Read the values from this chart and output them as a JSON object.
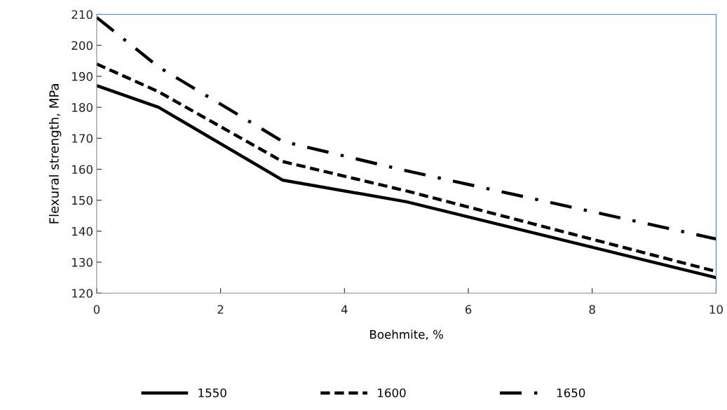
{
  "chart_data": {
    "type": "line",
    "xlabel": "Boehmite, %",
    "ylabel": "Flexural strength, MPa",
    "x": [
      0,
      1,
      3,
      5,
      10
    ],
    "series": [
      {
        "name": "1550",
        "color": "#000000",
        "line_style": "solid",
        "values": [
          187,
          180,
          156.5,
          149.5,
          125
        ]
      },
      {
        "name": "1600",
        "color": "#000000",
        "line_style": "dashed",
        "values": [
          194,
          185,
          162.5,
          153,
          127
        ]
      },
      {
        "name": "1650",
        "color": "#000000",
        "line_style": "dashdot",
        "values": [
          209,
          193,
          169,
          159.5,
          137.5
        ]
      }
    ],
    "xlim": [
      0,
      10
    ],
    "xticks": [
      0,
      2,
      4,
      6,
      8,
      10
    ],
    "ylim": [
      120,
      210
    ],
    "yticks": [
      120,
      130,
      140,
      150,
      160,
      170,
      180,
      190,
      200,
      210
    ],
    "grid": false,
    "legend": "bottom",
    "marker": "none"
  }
}
